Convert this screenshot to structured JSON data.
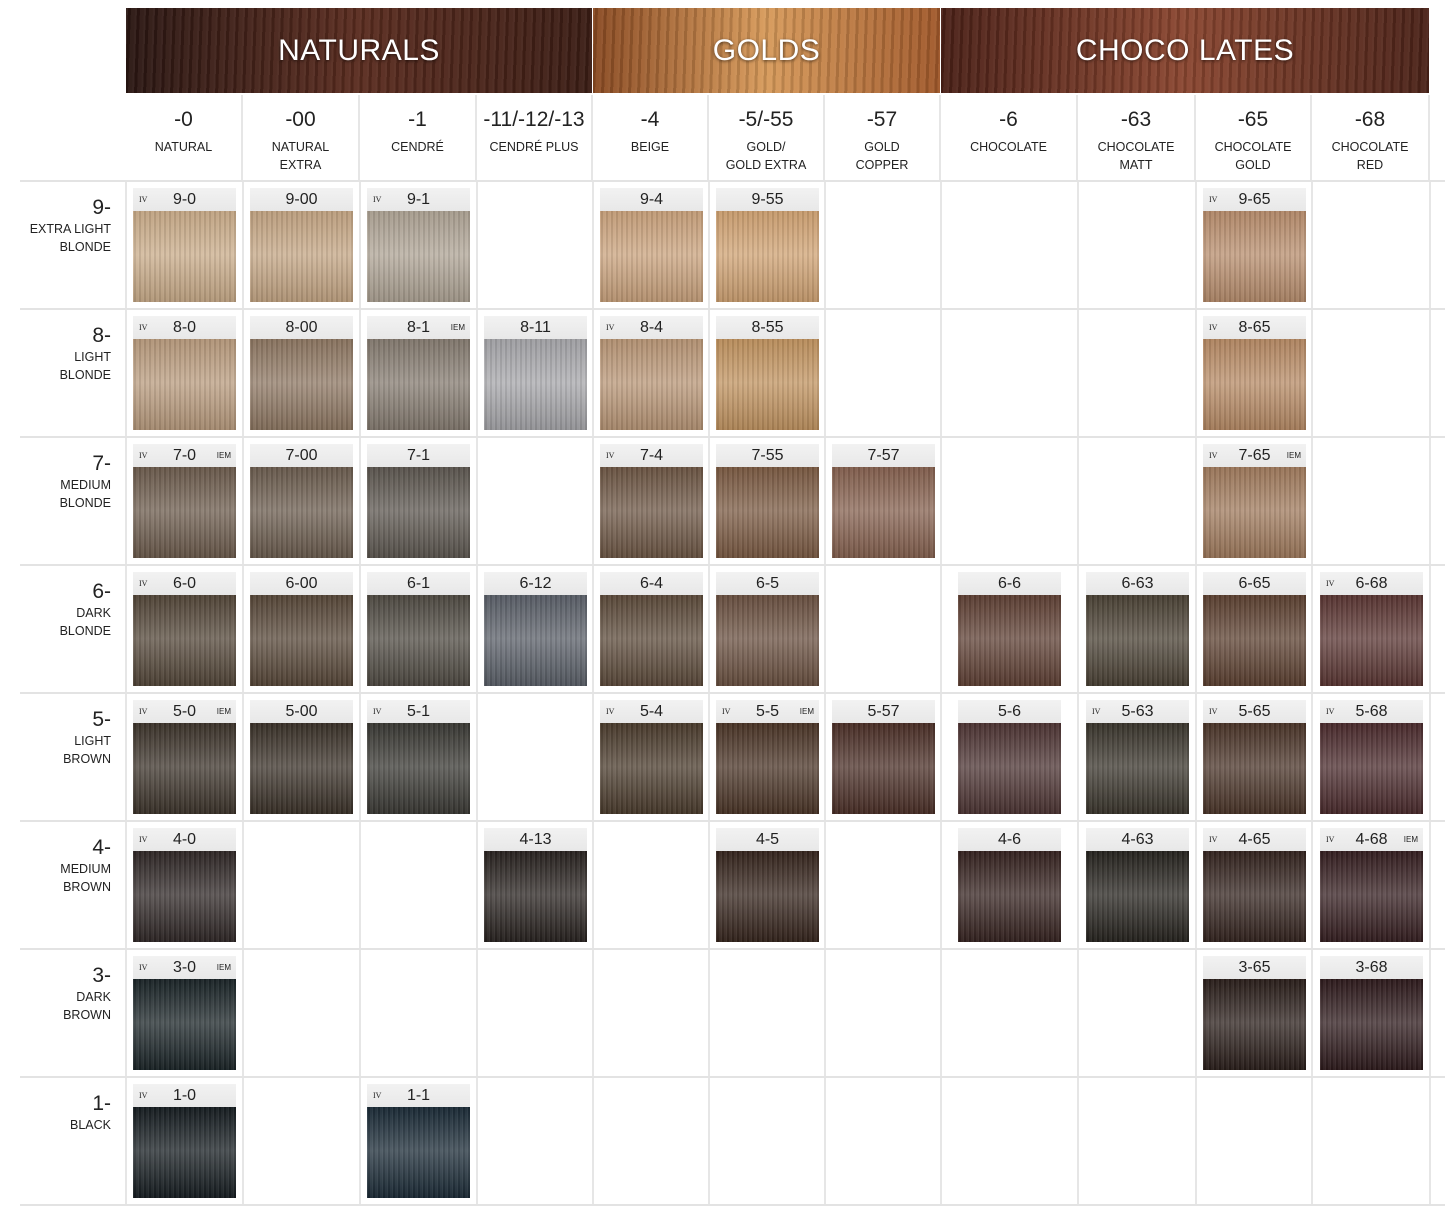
{
  "groups": [
    {
      "label": "NATURALS",
      "colors": [
        "#2a1612",
        "#5a2c1f",
        "#3a1c14"
      ],
      "span": [
        0,
        3
      ]
    },
    {
      "label": "GOLDS",
      "colors": [
        "#8a4a22",
        "#d79a5a",
        "#a0582a"
      ],
      "span": [
        4,
        6
      ]
    },
    {
      "label": "CHOCO LATES",
      "colors": [
        "#4a2017",
        "#8a4630",
        "#4a2218"
      ],
      "span": [
        7,
        10
      ]
    }
  ],
  "columns": [
    {
      "code": "-0",
      "name": "NATURAL"
    },
    {
      "code": "-00",
      "name": "NATURAL\nEXTRA"
    },
    {
      "code": "-1",
      "name": "CENDRÉ"
    },
    {
      "code": "-11/-12/-13",
      "name": "CENDRÉ PLUS"
    },
    {
      "code": "-4",
      "name": "BEIGE"
    },
    {
      "code": "-5/-55",
      "name": "GOLD/\nGOLD EXTRA"
    },
    {
      "code": "-57",
      "name": "GOLD\nCOPPER"
    },
    {
      "code": "-6",
      "name": "CHOCOLATE"
    },
    {
      "code": "-63",
      "name": "CHOCOLATE\nMATT"
    },
    {
      "code": "-65",
      "name": "CHOCOLATE\nGOLD"
    },
    {
      "code": "-68",
      "name": "CHOCOLATE\nRED"
    }
  ],
  "rows": [
    {
      "num": "9-",
      "name": "EXTRA LIGHT\nBLONDE",
      "swatches": [
        {
          "col": 0,
          "code": "9-0",
          "iv": "IV",
          "color": "#c9ab88"
        },
        {
          "col": 1,
          "code": "9-00",
          "color": "#c4a583"
        },
        {
          "col": 2,
          "code": "9-1",
          "iv": "IV",
          "color": "#aea394"
        },
        {
          "col": 4,
          "code": "9-4",
          "color": "#caa27c"
        },
        {
          "col": 5,
          "code": "9-55",
          "color": "#d0a272"
        },
        {
          "col": 9,
          "code": "9-65",
          "iv": "IV",
          "color": "#b88d6c"
        }
      ]
    },
    {
      "num": "8-",
      "name": "LIGHT\nBLONDE",
      "swatches": [
        {
          "col": 0,
          "code": "8-0",
          "iv": "IV",
          "color": "#b99b7d"
        },
        {
          "col": 1,
          "code": "8-00",
          "color": "#8e7762"
        },
        {
          "col": 2,
          "code": "8-1",
          "iem": "IEM",
          "color": "#857b70"
        },
        {
          "col": 3,
          "code": "8-11",
          "color": "#a6a6aa"
        },
        {
          "col": 4,
          "code": "8-4",
          "iv": "IV",
          "color": "#b99676"
        },
        {
          "col": 5,
          "code": "8-55",
          "color": "#c1935f"
        },
        {
          "col": 9,
          "code": "8-65",
          "iv": "IV",
          "color": "#b78a64"
        }
      ]
    },
    {
      "num": "7-",
      "name": "MEDIUM\nBLONDE",
      "swatches": [
        {
          "col": 0,
          "code": "7-0",
          "iv": "IV",
          "iem": "IEM",
          "color": "#6c5b4c"
        },
        {
          "col": 1,
          "code": "7-00",
          "color": "#6b5c4e"
        },
        {
          "col": 2,
          "code": "7-1",
          "color": "#5c564f"
        },
        {
          "col": 4,
          "code": "7-4",
          "iv": "IV",
          "color": "#6d5644"
        },
        {
          "col": 5,
          "code": "7-55",
          "color": "#7b5a42"
        },
        {
          "col": 6,
          "code": "7-57",
          "color": "#85604e"
        },
        {
          "col": 9,
          "code": "7-65",
          "iv": "IV",
          "iem": "IEM",
          "color": "#a07a5c"
        }
      ]
    },
    {
      "num": "6-",
      "name": "DARK\nBLONDE",
      "swatches": [
        {
          "col": 0,
          "code": "6-0",
          "iv": "IV",
          "color": "#534638"
        },
        {
          "col": 1,
          "code": "6-00",
          "color": "#574738"
        },
        {
          "col": 2,
          "code": "6-1",
          "color": "#4f4a42"
        },
        {
          "col": 3,
          "code": "6-12",
          "color": "#5a5f68"
        },
        {
          "col": 4,
          "code": "6-4",
          "color": "#5c4a3a"
        },
        {
          "col": 5,
          "code": "6-5",
          "color": "#6a5040"
        },
        {
          "col": 7,
          "code": "6-6",
          "color": "#5e3f33"
        },
        {
          "col": 8,
          "code": "6-63",
          "color": "#4a4134"
        },
        {
          "col": 9,
          "code": "6-65",
          "color": "#5c4030"
        },
        {
          "col": 10,
          "code": "6-68",
          "iv": "IV",
          "color": "#5a3532"
        }
      ]
    },
    {
      "num": "5-",
      "name": "LIGHT\nBROWN",
      "swatches": [
        {
          "col": 0,
          "code": "5-0",
          "iv": "IV",
          "iem": "IEM",
          "color": "#3c332a"
        },
        {
          "col": 1,
          "code": "5-00",
          "color": "#3a3128"
        },
        {
          "col": 2,
          "code": "5-1",
          "iv": "IV",
          "color": "#393833"
        },
        {
          "col": 4,
          "code": "5-4",
          "iv": "IV",
          "color": "#4a3b2c"
        },
        {
          "col": 5,
          "code": "5-5",
          "iv": "IV",
          "iem": "IEM",
          "color": "#4a3426"
        },
        {
          "col": 6,
          "code": "5-57",
          "color": "#4a2e26"
        },
        {
          "col": 7,
          "code": "5-6",
          "color": "#4c3332"
        },
        {
          "col": 8,
          "code": "5-63",
          "iv": "IV",
          "color": "#3a352c"
        },
        {
          "col": 9,
          "code": "5-65",
          "iv": "IV",
          "color": "#4a3428"
        },
        {
          "col": 10,
          "code": "5-68",
          "iv": "IV",
          "color": "#4a2a2c"
        }
      ]
    },
    {
      "num": "4-",
      "name": "MEDIUM\nBROWN",
      "swatches": [
        {
          "col": 0,
          "code": "4-0",
          "iv": "IV",
          "color": "#2f2726"
        },
        {
          "col": 3,
          "code": "4-13",
          "color": "#28221f"
        },
        {
          "col": 5,
          "code": "4-5",
          "color": "#35241c"
        },
        {
          "col": 7,
          "code": "4-6",
          "color": "#35221f"
        },
        {
          "col": 8,
          "code": "4-63",
          "color": "#26231e"
        },
        {
          "col": 9,
          "code": "4-65",
          "iv": "IV",
          "color": "#33231e"
        },
        {
          "col": 10,
          "code": "4-68",
          "iv": "IV",
          "iem": "IEM",
          "color": "#351e20"
        }
      ]
    },
    {
      "num": "3-",
      "name": "DARK\nBROWN",
      "swatches": [
        {
          "col": 0,
          "code": "3-0",
          "iv": "IV",
          "iem": "IEM",
          "color": "#1a2427"
        },
        {
          "col": 9,
          "code": "3-65",
          "color": "#2a1e1a"
        },
        {
          "col": 10,
          "code": "3-68",
          "color": "#2e1a1c"
        }
      ]
    },
    {
      "num": "1-",
      "name": "BLACK",
      "swatches": [
        {
          "col": 0,
          "code": "1-0",
          "iv": "IV",
          "color": "#151c20"
        },
        {
          "col": 2,
          "code": "1-1",
          "iv": "IV",
          "color": "#1a2a36"
        }
      ]
    }
  ]
}
